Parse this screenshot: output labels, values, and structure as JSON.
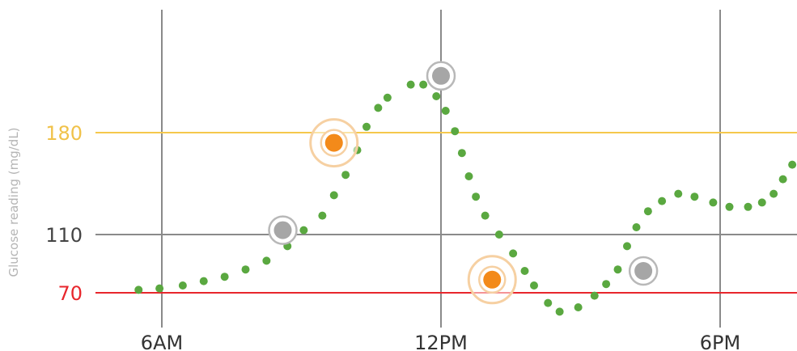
{
  "chart_data": {
    "type": "scatter",
    "title": "",
    "ylabel": "Glucose reading (mg/dL)",
    "xlabel": "",
    "x_range_hours": [
      4.0,
      19.4
    ],
    "y_range": [
      50.0,
      222.3
    ],
    "x_ticks": [
      {
        "hour": 6,
        "label": "6AM"
      },
      {
        "hour": 12,
        "label": "12PM"
      },
      {
        "hour": 18,
        "label": "6PM"
      }
    ],
    "y_ticks": [
      {
        "value": 70,
        "label": "70",
        "color": "#e8262c"
      },
      {
        "value": 110,
        "label": "110",
        "color": "#444444"
      },
      {
        "value": 180,
        "label": "180",
        "color": "#f0c24a"
      }
    ],
    "threshold_lines": [
      {
        "value": 70,
        "color": "#e8262c"
      },
      {
        "value": 110,
        "color": "#8a8a8a"
      },
      {
        "value": 180,
        "color": "#f5c84c"
      }
    ],
    "grid": true,
    "series": [
      {
        "color": "#5aa840",
        "points": [
          [
            5.5,
            72
          ],
          [
            5.95,
            73
          ],
          [
            6.45,
            75
          ],
          [
            6.9,
            78
          ],
          [
            7.35,
            81
          ],
          [
            7.8,
            86
          ],
          [
            8.25,
            92
          ],
          [
            8.7,
            102
          ],
          [
            9.05,
            113
          ],
          [
            9.45,
            123
          ],
          [
            9.7,
            137
          ],
          [
            9.95,
            151
          ],
          [
            10.2,
            168
          ],
          [
            10.4,
            184
          ],
          [
            10.65,
            197
          ],
          [
            10.85,
            204
          ],
          [
            11.35,
            213
          ],
          [
            11.62,
            213
          ],
          [
            11.9,
            205
          ],
          [
            12.1,
            195
          ],
          [
            12.3,
            181
          ],
          [
            12.45,
            166
          ],
          [
            12.6,
            150
          ],
          [
            12.75,
            136
          ],
          [
            12.95,
            123
          ],
          [
            13.25,
            110
          ],
          [
            13.55,
            97
          ],
          [
            13.8,
            85
          ],
          [
            14.0,
            75
          ],
          [
            14.3,
            63
          ],
          [
            14.55,
            57
          ],
          [
            14.95,
            60
          ],
          [
            15.3,
            68
          ],
          [
            15.55,
            76
          ],
          [
            15.8,
            86
          ],
          [
            16.0,
            102
          ],
          [
            16.2,
            115
          ],
          [
            16.45,
            126
          ],
          [
            16.75,
            133
          ],
          [
            17.1,
            138
          ],
          [
            17.45,
            136
          ],
          [
            17.85,
            132
          ],
          [
            18.2,
            129
          ],
          [
            18.6,
            129
          ],
          [
            18.9,
            132
          ],
          [
            19.15,
            138
          ],
          [
            19.35,
            148
          ],
          [
            19.55,
            158
          ]
        ]
      }
    ],
    "markers": [
      {
        "type": "gray",
        "hour": 8.6,
        "value": 113
      },
      {
        "type": "orange",
        "hour": 9.7,
        "value": 173
      },
      {
        "type": "gray",
        "hour": 12.0,
        "value": 219
      },
      {
        "type": "orange",
        "hour": 13.1,
        "value": 79
      },
      {
        "type": "gray",
        "hour": 16.35,
        "value": 85
      }
    ],
    "colors": {
      "gray_marker": "#a6a6a6",
      "gray_ring": "#b8b8b8",
      "orange_marker": "#f38a1a",
      "orange_ring": "#f6d0a2",
      "grid_vertical": "#8a8a8a",
      "ylabel": "#b5b5b5",
      "xtick": "#333333"
    }
  }
}
